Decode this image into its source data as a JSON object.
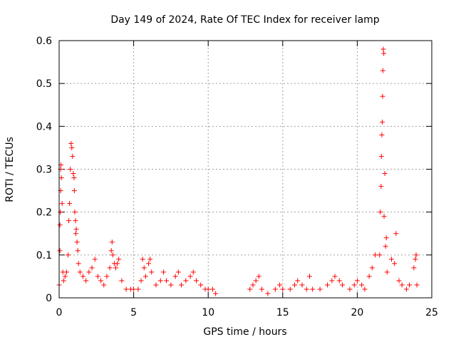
{
  "chart_data": {
    "type": "scatter",
    "title": "Day 149 of 2024, Rate Of TEC Index for receiver lamp",
    "xlabel": "GPS time / hours",
    "ylabel": "ROTI / TECUs",
    "xlim": [
      0,
      25
    ],
    "ylim": [
      0,
      0.6
    ],
    "xticks": [
      0,
      5,
      10,
      15,
      20,
      25
    ],
    "xtick_labels": [
      "0",
      "5",
      "10",
      "15",
      "20",
      "25"
    ],
    "yticks": [
      0,
      0.1,
      0.2,
      0.3,
      0.4,
      0.5,
      0.6
    ],
    "ytick_labels": [
      "0",
      "0.1",
      "0.2",
      "0.3",
      "0.4",
      "0.5",
      "0.6"
    ],
    "grid": true,
    "marker": "+",
    "marker_color": "#ff0000",
    "series": [
      {
        "name": "ROTI",
        "points": [
          [
            0.0,
            0.03
          ],
          [
            0.05,
            0.11
          ],
          [
            0.05,
            0.17
          ],
          [
            0.08,
            0.2
          ],
          [
            0.1,
            0.25
          ],
          [
            0.1,
            0.3
          ],
          [
            0.12,
            0.31
          ],
          [
            0.15,
            0.28
          ],
          [
            0.2,
            0.22
          ],
          [
            0.25,
            0.06
          ],
          [
            0.3,
            0.04
          ],
          [
            0.4,
            0.05
          ],
          [
            0.5,
            0.06
          ],
          [
            0.6,
            0.1
          ],
          [
            0.65,
            0.18
          ],
          [
            0.7,
            0.22
          ],
          [
            0.75,
            0.3
          ],
          [
            0.8,
            0.36
          ],
          [
            0.85,
            0.35
          ],
          [
            0.9,
            0.33
          ],
          [
            0.95,
            0.29
          ],
          [
            1.0,
            0.28
          ],
          [
            1.02,
            0.25
          ],
          [
            1.05,
            0.2
          ],
          [
            1.1,
            0.18
          ],
          [
            1.12,
            0.15
          ],
          [
            1.15,
            0.16
          ],
          [
            1.2,
            0.13
          ],
          [
            1.25,
            0.11
          ],
          [
            1.3,
            0.08
          ],
          [
            1.4,
            0.06
          ],
          [
            1.6,
            0.05
          ],
          [
            1.8,
            0.04
          ],
          [
            2.0,
            0.06
          ],
          [
            2.2,
            0.07
          ],
          [
            2.4,
            0.09
          ],
          [
            2.6,
            0.05
          ],
          [
            2.8,
            0.04
          ],
          [
            3.0,
            0.03
          ],
          [
            3.2,
            0.05
          ],
          [
            3.4,
            0.07
          ],
          [
            3.5,
            0.11
          ],
          [
            3.55,
            0.13
          ],
          [
            3.6,
            0.1
          ],
          [
            3.7,
            0.08
          ],
          [
            3.8,
            0.07
          ],
          [
            3.9,
            0.08
          ],
          [
            4.0,
            0.09
          ],
          [
            4.2,
            0.04
          ],
          [
            4.5,
            0.02
          ],
          [
            4.8,
            0.02
          ],
          [
            5.0,
            0.02
          ],
          [
            5.3,
            0.02
          ],
          [
            5.5,
            0.04
          ],
          [
            5.6,
            0.09
          ],
          [
            5.7,
            0.07
          ],
          [
            5.8,
            0.05
          ],
          [
            6.0,
            0.08
          ],
          [
            6.1,
            0.09
          ],
          [
            6.2,
            0.06
          ],
          [
            6.5,
            0.03
          ],
          [
            6.8,
            0.04
          ],
          [
            7.0,
            0.06
          ],
          [
            7.2,
            0.04
          ],
          [
            7.5,
            0.03
          ],
          [
            7.8,
            0.05
          ],
          [
            8.0,
            0.06
          ],
          [
            8.2,
            0.03
          ],
          [
            8.5,
            0.04
          ],
          [
            8.8,
            0.05
          ],
          [
            9.0,
            0.06
          ],
          [
            9.2,
            0.04
          ],
          [
            9.5,
            0.03
          ],
          [
            9.8,
            0.02
          ],
          [
            10.0,
            0.02
          ],
          [
            10.3,
            0.02
          ],
          [
            10.5,
            0.01
          ],
          [
            12.8,
            0.02
          ],
          [
            13.0,
            0.03
          ],
          [
            13.2,
            0.04
          ],
          [
            13.4,
            0.05
          ],
          [
            13.6,
            0.02
          ],
          [
            14.0,
            0.01
          ],
          [
            14.5,
            0.02
          ],
          [
            14.8,
            0.03
          ],
          [
            15.0,
            0.02
          ],
          [
            15.5,
            0.02
          ],
          [
            15.8,
            0.03
          ],
          [
            16.0,
            0.04
          ],
          [
            16.3,
            0.03
          ],
          [
            16.6,
            0.02
          ],
          [
            16.8,
            0.05
          ],
          [
            17.0,
            0.02
          ],
          [
            17.5,
            0.02
          ],
          [
            18.0,
            0.03
          ],
          [
            18.3,
            0.04
          ],
          [
            18.5,
            0.05
          ],
          [
            18.8,
            0.04
          ],
          [
            19.0,
            0.03
          ],
          [
            19.5,
            0.02
          ],
          [
            19.8,
            0.03
          ],
          [
            20.0,
            0.04
          ],
          [
            20.3,
            0.03
          ],
          [
            20.5,
            0.02
          ],
          [
            20.8,
            0.05
          ],
          [
            21.0,
            0.07
          ],
          [
            21.2,
            0.1
          ],
          [
            21.5,
            0.1
          ],
          [
            21.55,
            0.2
          ],
          [
            21.6,
            0.26
          ],
          [
            21.62,
            0.33
          ],
          [
            21.65,
            0.38
          ],
          [
            21.68,
            0.41
          ],
          [
            21.7,
            0.47
          ],
          [
            21.72,
            0.53
          ],
          [
            21.75,
            0.58
          ],
          [
            21.78,
            0.57
          ],
          [
            21.8,
            0.19
          ],
          [
            21.85,
            0.29
          ],
          [
            21.9,
            0.12
          ],
          [
            21.95,
            0.14
          ],
          [
            22.0,
            0.06
          ],
          [
            22.3,
            0.09
          ],
          [
            22.5,
            0.08
          ],
          [
            22.6,
            0.15
          ],
          [
            22.8,
            0.04
          ],
          [
            23.0,
            0.03
          ],
          [
            23.3,
            0.02
          ],
          [
            23.5,
            0.03
          ],
          [
            23.8,
            0.07
          ],
          [
            23.9,
            0.09
          ],
          [
            23.95,
            0.1
          ],
          [
            24.0,
            0.03
          ]
        ]
      }
    ]
  }
}
